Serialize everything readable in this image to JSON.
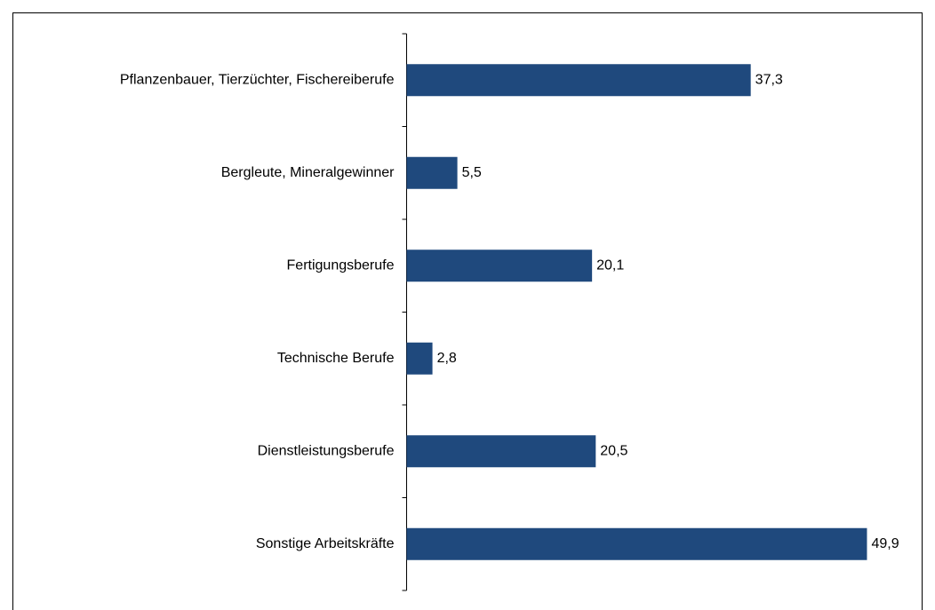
{
  "chart_data": {
    "type": "bar",
    "orientation": "horizontal",
    "categories": [
      "Pflanzenbauer, Tierzüchter, Fischereiberufe",
      "Bergleute, Mineralgewinner",
      "Fertigungsberufe",
      "Technische Berufe",
      "Dienstleistungsberufe",
      "Sonstige Arbeitskräfte"
    ],
    "values": [
      37.3,
      5.5,
      20.1,
      2.8,
      20.5,
      49.9
    ],
    "value_labels": [
      "37,3",
      "5,5",
      "20,1",
      "2,8",
      "20,5",
      "49,9"
    ],
    "color": "#1f497d"
  }
}
